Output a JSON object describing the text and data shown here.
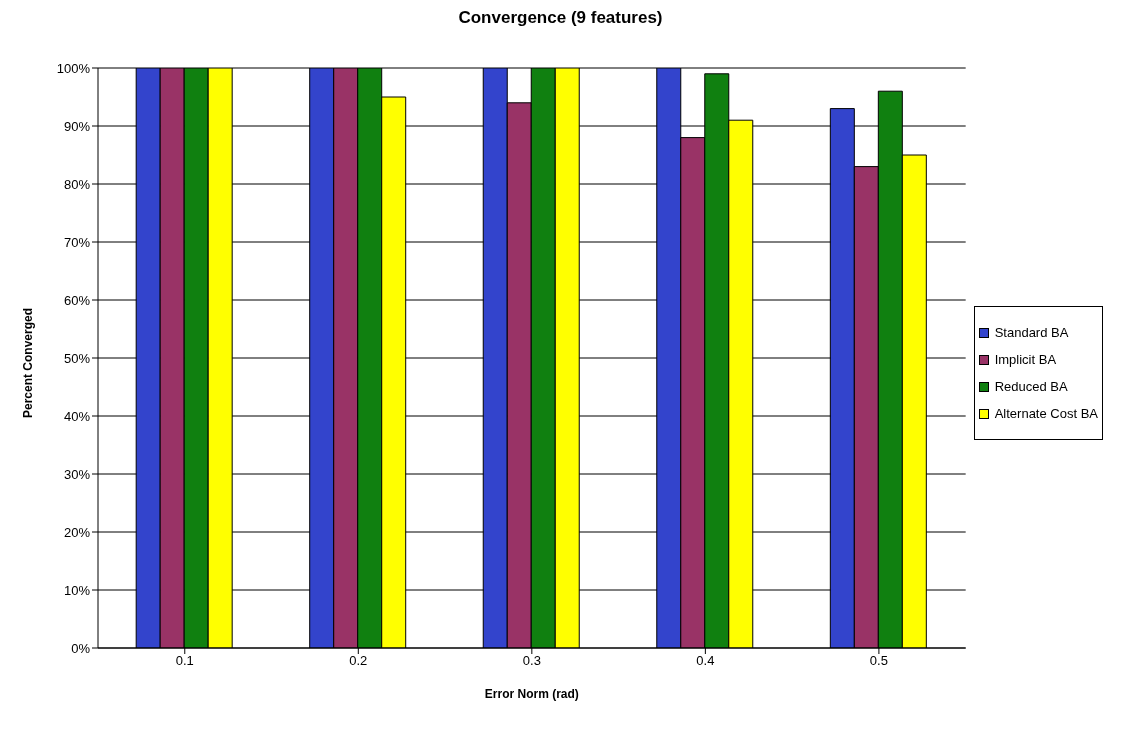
{
  "chart_data": {
    "type": "bar",
    "title": "Convergence (9 features)",
    "xlabel": "Error Norm (rad)",
    "ylabel": "Percent Converged",
    "categories": [
      "0.1",
      "0.2",
      "0.3",
      "0.4",
      "0.5"
    ],
    "series": [
      {
        "name": "Standard BA",
        "color": "#3344cc",
        "values": [
          100,
          100,
          100,
          100,
          93
        ]
      },
      {
        "name": "Implicit BA",
        "color": "#993366",
        "values": [
          100,
          100,
          94,
          88,
          83
        ]
      },
      {
        "name": "Reduced BA",
        "color": "#108010",
        "values": [
          100,
          100,
          100,
          99,
          96
        ]
      },
      {
        "name": "Alternate Cost BA",
        "color": "#ffff00",
        "values": [
          100,
          95,
          100,
          91,
          85
        ]
      }
    ],
    "ylim": [
      0,
      100
    ],
    "yticks": [
      {
        "value": 0,
        "label": "0%"
      },
      {
        "value": 10,
        "label": "10%"
      },
      {
        "value": 20,
        "label": "20%"
      },
      {
        "value": 30,
        "label": "30%"
      },
      {
        "value": 40,
        "label": "40%"
      },
      {
        "value": 50,
        "label": "50%"
      },
      {
        "value": 60,
        "label": "60%"
      },
      {
        "value": 70,
        "label": "70%"
      },
      {
        "value": 80,
        "label": "80%"
      },
      {
        "value": 90,
        "label": "90%"
      },
      {
        "value": 100,
        "label": "100%"
      }
    ],
    "grid": "y",
    "legend": "right"
  }
}
